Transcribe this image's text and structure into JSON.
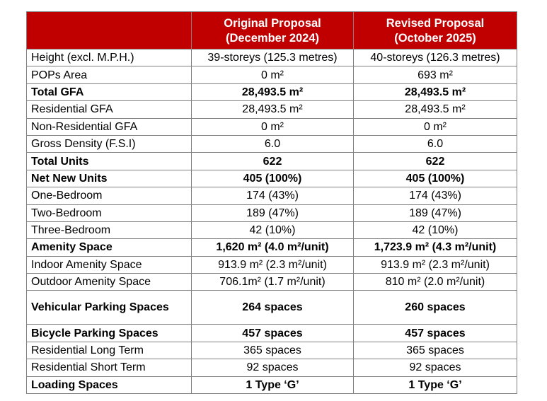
{
  "headers": {
    "original_line1": "Original Proposal",
    "original_line2": "(December 2024)",
    "revised_line1": "Revised Proposal",
    "revised_line2": "(October 2025)"
  },
  "rows": [
    {
      "label": "Height (excl. M.P.H.)",
      "original": "39-storeys (125.3 metres)",
      "revised": "40-storeys (126.3 metres)",
      "bold": false
    },
    {
      "label": "POPs Area",
      "original": "0 m²",
      "revised": "693 m²",
      "bold": false
    },
    {
      "label": "Total GFA",
      "original": "28,493.5 m²",
      "revised": "28,493.5 m²",
      "bold": true
    },
    {
      "label": "Residential GFA",
      "original": "28,493.5 m²",
      "revised": "28,493.5 m²",
      "bold": false
    },
    {
      "label": "Non-Residential GFA",
      "original": "0 m²",
      "revised": "0 m²",
      "bold": false
    },
    {
      "label": "Gross Density (F.S.I)",
      "original": "6.0",
      "revised": "6.0",
      "bold": false
    },
    {
      "label": "Total Units",
      "original": "622",
      "revised": "622",
      "bold": true
    },
    {
      "label": "Net New Units",
      "original": "405 (100%)",
      "revised": "405 (100%)",
      "bold": true
    },
    {
      "label": "One-Bedroom",
      "original": "174 (43%)",
      "revised": "174 (43%)",
      "bold": false
    },
    {
      "label": "Two-Bedroom",
      "original": "189 (47%)",
      "revised": "189 (47%)",
      "bold": false
    },
    {
      "label": "Three-Bedroom",
      "original": "42 (10%)",
      "revised": "42 (10%)",
      "bold": false
    },
    {
      "label": "Amenity Space",
      "original": "1,620 m² (4.0 m²/unit)",
      "revised": "1,723.9 m² (4.3 m²/unit)",
      "bold": true
    },
    {
      "label": "Indoor Amenity Space",
      "original": "913.9 m² (2.3 m²/unit)",
      "revised": "913.9 m² (2.3 m²/unit)",
      "bold": false
    },
    {
      "label": "Outdoor Amenity Space",
      "original": "706.1m² (1.7 m²/unit)",
      "revised": "810 m² (2.0 m²/unit)",
      "bold": false
    },
    {
      "label": "Vehicular Parking Spaces",
      "original": "264 spaces",
      "revised": "260 spaces",
      "bold": true
    },
    {
      "label": "Bicycle Parking Spaces",
      "original": "457 spaces",
      "revised": "457 spaces",
      "bold": true
    },
    {
      "label": "Residential Long Term",
      "original": "365 spaces",
      "revised": "365 spaces",
      "bold": false
    },
    {
      "label": "Residential Short Term",
      "original": "92 spaces",
      "revised": "92 spaces",
      "bold": false
    },
    {
      "label": "Loading Spaces",
      "original": "1 Type ‘G’",
      "revised": "1 Type ‘G’",
      "bold": true
    }
  ]
}
